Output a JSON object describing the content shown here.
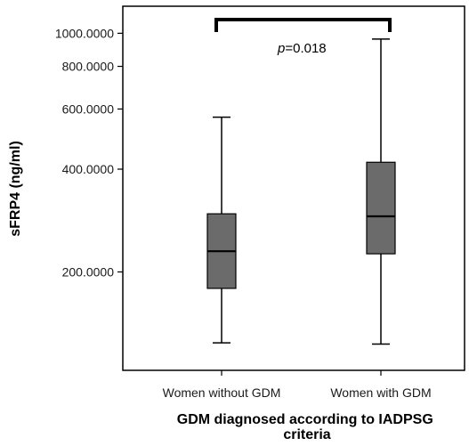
{
  "chart_data": {
    "type": "boxplot",
    "title": "",
    "xlabel": "GDM diagnosed according to IADPSG criteria",
    "ylabel": "sFRP4 (ng/ml)",
    "y_scale": "log",
    "ylim": [
      103,
      1200
    ],
    "y_ticks": [
      200,
      400,
      600,
      800,
      1000
    ],
    "y_tick_labels": [
      "200.0000",
      "400.0000",
      "600.0000",
      "800.0000",
      "1000.0000"
    ],
    "grid": false,
    "categories": [
      "Women without GDM",
      "Women with GDM"
    ],
    "boxes": [
      {
        "category": "Women without GDM",
        "min": 124,
        "q1": 179,
        "median": 230,
        "q3": 296,
        "max": 568
      },
      {
        "category": "Women with GDM",
        "min": 123,
        "q1": 226,
        "median": 291,
        "q3": 419,
        "max": 962
      }
    ],
    "annotation": {
      "prefix": "p",
      "text": "=0.018",
      "between": [
        "Women without GDM",
        "Women with GDM"
      ]
    },
    "box_color": "#6b6b6b"
  }
}
